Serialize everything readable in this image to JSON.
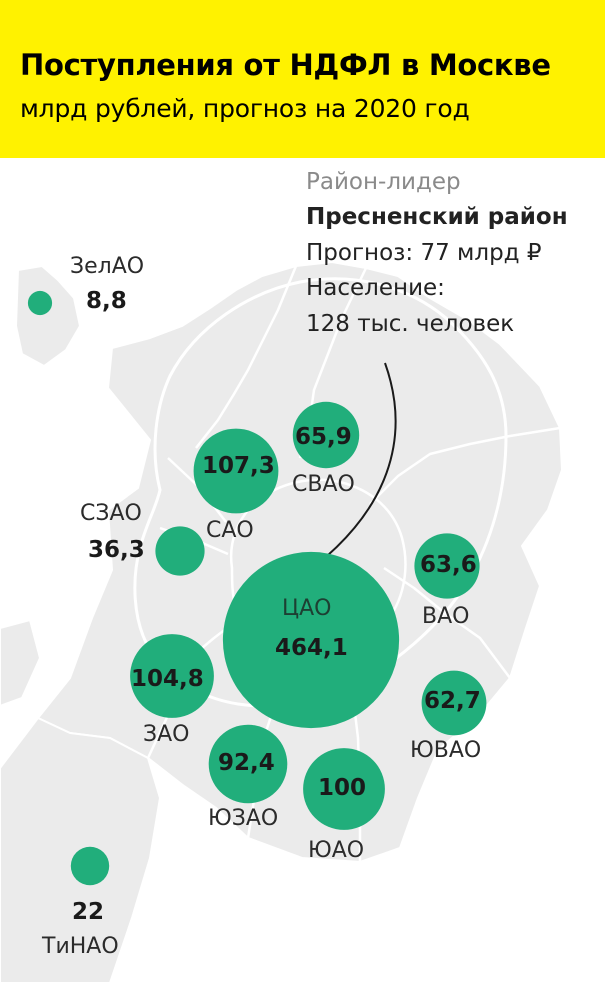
{
  "header": {
    "title": "Поступления от НДФЛ в Москве",
    "subtitle": "млрд рублей, прогноз на 2020 год"
  },
  "colors": {
    "header_bg": "#fff200",
    "bubble": "#21ae7b",
    "map_fill": "#ebebeb",
    "map_border": "#ffffff"
  },
  "leader": {
    "caption": "Район-лидер",
    "name": "Пресненский район",
    "forecast": "Прогноз: 77 млрд ₽",
    "population_label": "Население:",
    "population_value": "128 тыс. человек"
  },
  "districts": [
    {
      "name": "ЗелАО",
      "value": 8.8,
      "value_label": "8,8"
    },
    {
      "name": "СЗАО",
      "value": 36.3,
      "value_label": "36,3"
    },
    {
      "name": "САО",
      "value": 107.3,
      "value_label": "107,3"
    },
    {
      "name": "СВАО",
      "value": 65.9,
      "value_label": "65,9"
    },
    {
      "name": "ВАО",
      "value": 63.6,
      "value_label": "63,6"
    },
    {
      "name": "ЦАО",
      "value": 464.1,
      "value_label": "464,1"
    },
    {
      "name": "ЗАО",
      "value": 104.8,
      "value_label": "104,8"
    },
    {
      "name": "ЮВАО",
      "value": 62.7,
      "value_label": "62,7"
    },
    {
      "name": "ЮЗАО",
      "value": 92.4,
      "value_label": "92,4"
    },
    {
      "name": "ЮАО",
      "value": 100,
      "value_label": "100"
    },
    {
      "name": "ТиНАО",
      "value": 22,
      "value_label": "22"
    }
  ]
}
